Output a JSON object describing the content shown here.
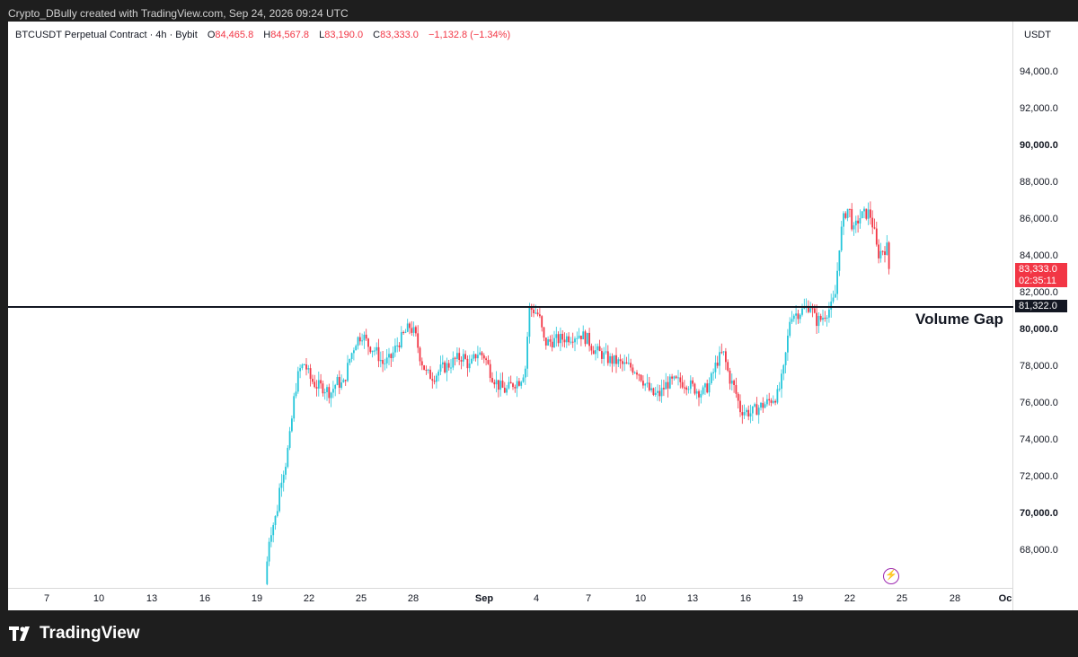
{
  "header": {
    "credit": "Crypto_DBully created with TradingView.com, Sep 24, 2026 09:24 UTC"
  },
  "legend": {
    "symbol": "BTCUSDT Perpetual Contract · 4h · Bybit",
    "o_label": "O",
    "o_value": "84,465.8",
    "h_label": "H",
    "h_value": "84,567.8",
    "l_label": "L",
    "l_value": "83,190.0",
    "c_label": "C",
    "c_value": "83,333.0",
    "change": "−1,132.8 (−1.34%)"
  },
  "price_axis": {
    "currency": "USDT",
    "last_price": "83,333.0",
    "countdown": "02:35:11",
    "level_tag": "81,322.0"
  },
  "annotation": {
    "volume_gap_label": "Volume Gap"
  },
  "footer": {
    "brand": "TradingView"
  },
  "colors": {
    "up": "#26c6da",
    "down": "#f23645",
    "level_line": "#131722",
    "bolt": "#9c27b0"
  },
  "icons": [
    "tradingview-logo-icon",
    "lightning-icon"
  ],
  "chart_data": {
    "type": "candlestick",
    "timeframe": "4h",
    "ylim": [
      66000,
      96000
    ],
    "y_ticks": [
      "68,000.0",
      "70,000.0",
      "72,000.0",
      "74,000.0",
      "76,000.0",
      "78,000.0",
      "80,000.0",
      "82,000.0",
      "84,000.0",
      "86,000.0",
      "88,000.0",
      "90,000.0",
      "92,000.0",
      "94,000.0"
    ],
    "y_tick_values": [
      68000,
      70000,
      72000,
      74000,
      76000,
      78000,
      80000,
      82000,
      84000,
      86000,
      88000,
      90000,
      92000,
      94000
    ],
    "x_ticks": [
      "7",
      "10",
      "13",
      "16",
      "19",
      "22",
      "25",
      "28",
      "Sep",
      "4",
      "7",
      "10",
      "13",
      "16",
      "19",
      "22",
      "25",
      "28",
      "Oc"
    ],
    "level_line": 81322,
    "anchors": [
      {
        "x": 295,
        "c": 66200
      },
      {
        "x": 300,
        "c": 68900
      },
      {
        "x": 308,
        "c": 70000
      },
      {
        "x": 312,
        "c": 71800
      },
      {
        "x": 318,
        "c": 72800
      },
      {
        "x": 323,
        "c": 74300
      },
      {
        "x": 328,
        "c": 76600
      },
      {
        "x": 333,
        "c": 77800
      },
      {
        "x": 339,
        "c": 78200
      },
      {
        "x": 345,
        "c": 77400
      },
      {
        "x": 352,
        "c": 77000
      },
      {
        "x": 360,
        "c": 76900
      },
      {
        "x": 368,
        "c": 76600
      },
      {
        "x": 375,
        "c": 77200
      },
      {
        "x": 382,
        "c": 77000
      },
      {
        "x": 389,
        "c": 78400
      },
      {
        "x": 396,
        "c": 79400
      },
      {
        "x": 403,
        "c": 79800
      },
      {
        "x": 410,
        "c": 79200
      },
      {
        "x": 418,
        "c": 78900
      },
      {
        "x": 426,
        "c": 78200
      },
      {
        "x": 434,
        "c": 78400
      },
      {
        "x": 442,
        "c": 79200
      },
      {
        "x": 450,
        "c": 79800
      },
      {
        "x": 456,
        "c": 80200
      },
      {
        "x": 462,
        "c": 79800
      },
      {
        "x": 468,
        "c": 78500
      },
      {
        "x": 475,
        "c": 77600
      },
      {
        "x": 483,
        "c": 77500
      },
      {
        "x": 491,
        "c": 77900
      },
      {
        "x": 499,
        "c": 78100
      },
      {
        "x": 507,
        "c": 78400
      },
      {
        "x": 515,
        "c": 78600
      },
      {
        "x": 523,
        "c": 78000
      },
      {
        "x": 531,
        "c": 78800
      },
      {
        "x": 539,
        "c": 78600
      },
      {
        "x": 547,
        "c": 77600
      },
      {
        "x": 555,
        "c": 77000
      },
      {
        "x": 563,
        "c": 76700
      },
      {
        "x": 571,
        "c": 77100
      },
      {
        "x": 579,
        "c": 77300
      },
      {
        "x": 585,
        "c": 78000
      },
      {
        "x": 589,
        "c": 81200
      },
      {
        "x": 594,
        "c": 81100
      },
      {
        "x": 600,
        "c": 80800
      },
      {
        "x": 606,
        "c": 79300
      },
      {
        "x": 614,
        "c": 79400
      },
      {
        "x": 622,
        "c": 79500
      },
      {
        "x": 630,
        "c": 79600
      },
      {
        "x": 638,
        "c": 79700
      },
      {
        "x": 646,
        "c": 79800
      },
      {
        "x": 654,
        "c": 79500
      },
      {
        "x": 662,
        "c": 78900
      },
      {
        "x": 670,
        "c": 78700
      },
      {
        "x": 678,
        "c": 78400
      },
      {
        "x": 686,
        "c": 78300
      },
      {
        "x": 694,
        "c": 78100
      },
      {
        "x": 702,
        "c": 78000
      },
      {
        "x": 710,
        "c": 77800
      },
      {
        "x": 718,
        "c": 77100
      },
      {
        "x": 726,
        "c": 76500
      },
      {
        "x": 734,
        "c": 76500
      },
      {
        "x": 742,
        "c": 77100
      },
      {
        "x": 750,
        "c": 77200
      },
      {
        "x": 758,
        "c": 77200
      },
      {
        "x": 766,
        "c": 77100
      },
      {
        "x": 774,
        "c": 76800
      },
      {
        "x": 782,
        "c": 76600
      },
      {
        "x": 790,
        "c": 77100
      },
      {
        "x": 798,
        "c": 78300
      },
      {
        "x": 805,
        "c": 78800
      },
      {
        "x": 812,
        "c": 77400
      },
      {
        "x": 818,
        "c": 76800
      },
      {
        "x": 824,
        "c": 75700
      },
      {
        "x": 830,
        "c": 75600
      },
      {
        "x": 836,
        "c": 75500
      },
      {
        "x": 844,
        "c": 75800
      },
      {
        "x": 852,
        "c": 76000
      },
      {
        "x": 860,
        "c": 76300
      },
      {
        "x": 866,
        "c": 76500
      },
      {
        "x": 872,
        "c": 77700
      },
      {
        "x": 876,
        "c": 79200
      },
      {
        "x": 880,
        "c": 80900
      },
      {
        "x": 886,
        "c": 80900
      },
      {
        "x": 894,
        "c": 81100
      },
      {
        "x": 902,
        "c": 81400
      },
      {
        "x": 908,
        "c": 80500
      },
      {
        "x": 914,
        "c": 80600
      },
      {
        "x": 920,
        "c": 81000
      },
      {
        "x": 926,
        "c": 81300
      },
      {
        "x": 930,
        "c": 82000
      },
      {
        "x": 935,
        "c": 85000
      },
      {
        "x": 940,
        "c": 86300
      },
      {
        "x": 945,
        "c": 86700
      },
      {
        "x": 950,
        "c": 85300
      },
      {
        "x": 956,
        "c": 86100
      },
      {
        "x": 962,
        "c": 86300
      },
      {
        "x": 968,
        "c": 86400
      },
      {
        "x": 973,
        "c": 85400
      },
      {
        "x": 977,
        "c": 84100
      },
      {
        "x": 983,
        "c": 84400
      },
      {
        "x": 988,
        "c": 84500
      },
      {
        "x": 991,
        "c": 83333
      }
    ]
  }
}
